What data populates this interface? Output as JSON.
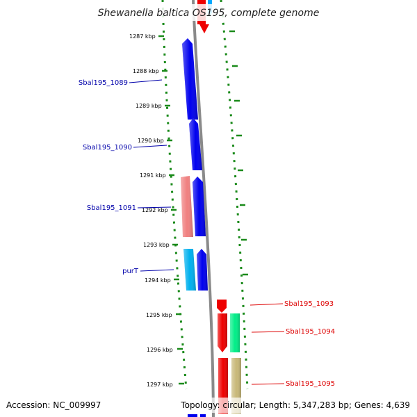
{
  "title": "Shewanella baltica OS195, complete genome",
  "footer": {
    "accession": "Accession: NC_009997",
    "summary": "Topology: circular; Length: 5,347,283 bp; Genes: 4,639"
  },
  "colors": {
    "scale_dots": "#1a8a1a",
    "backbone": "#8a8a8a",
    "label_left": "#0000aa",
    "label_right": "#dd0000"
  },
  "ticks": [
    "1287 kbp",
    "1288 kbp",
    "1289 kbp",
    "1290 kbp",
    "1291 kbp",
    "1292 kbp",
    "1293 kbp",
    "1294 kbp",
    "1295 kbp",
    "1296 kbp",
    "1297 kbp"
  ],
  "gene_labels": {
    "left": [
      "Sbal195_1089",
      "Sbal195_1090",
      "Sbal195_1091",
      "purT"
    ],
    "right": [
      "Sbal195_1093",
      "Sbal195_1094",
      "Sbal195_1095"
    ]
  },
  "genes": [
    {
      "name": "top-red-gene",
      "color": "#ee0000"
    },
    {
      "name": "top-cyan-gene",
      "color": "#00aaff"
    },
    {
      "name": "gene-sbal195-1089",
      "color": "#0000ee"
    },
    {
      "name": "gene-sbal195-1090",
      "color": "#0000ee"
    },
    {
      "name": "gene-sbal195-1091",
      "color": "#f08080"
    },
    {
      "name": "gene-blue-1291",
      "color": "#0000ee"
    },
    {
      "name": "gene-purt",
      "color": "#00b0ee"
    },
    {
      "name": "gene-blue-1293",
      "color": "#0000ee"
    },
    {
      "name": "gene-sbal195-1093",
      "color": "#ee0000"
    },
    {
      "name": "gene-red-1295",
      "color": "#ee0000"
    },
    {
      "name": "gene-sbal195-1094",
      "color": "#00ee88"
    },
    {
      "name": "gene-red-1296",
      "color": "#ee0000"
    },
    {
      "name": "gene-sbal195-1095",
      "color": "#c8b878"
    },
    {
      "name": "bottom-blue-gene",
      "color": "#0000ee"
    }
  ]
}
